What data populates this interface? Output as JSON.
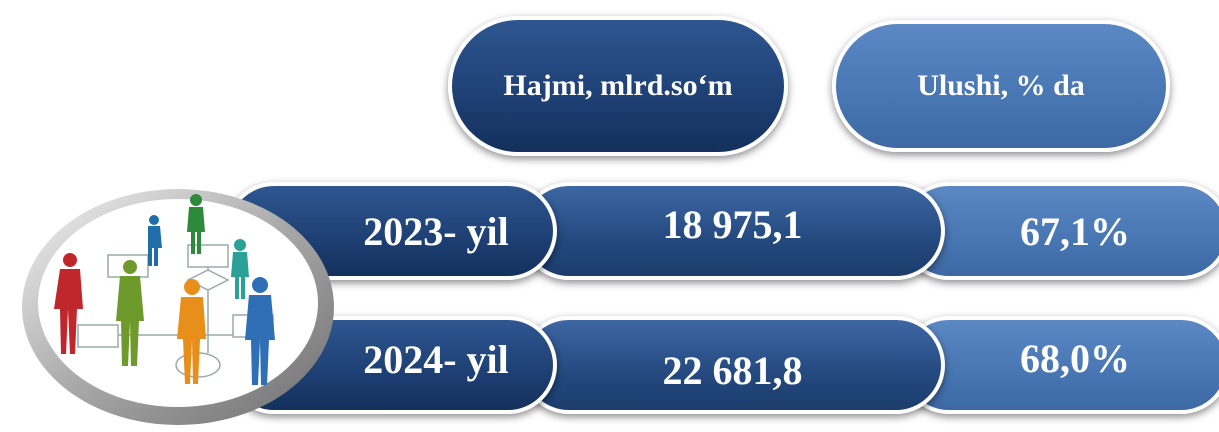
{
  "header": {
    "columns": [
      "Hajmi, mlrd.so‘m",
      "Ulushi, % da"
    ]
  },
  "table": {
    "rows": [
      [
        "2023- yil",
        "18 975,1",
        "67,1%"
      ],
      [
        "2024- yil",
        "22 681,8",
        "68,0%"
      ]
    ]
  }
}
